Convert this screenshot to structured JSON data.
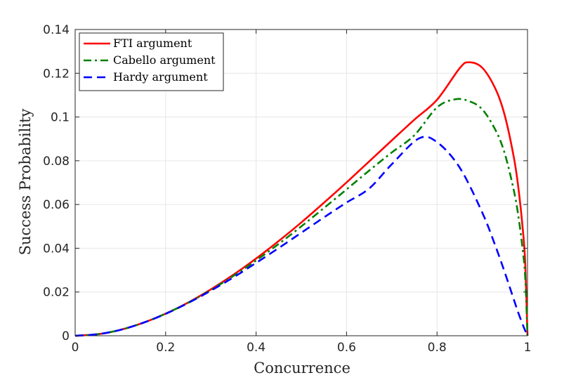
{
  "chart_data": {
    "type": "line",
    "title": "",
    "xlabel": "Concurrence",
    "ylabel": "Success Probability",
    "xlim": [
      0,
      1
    ],
    "ylim": [
      0,
      0.14
    ],
    "xticks": [
      0,
      0.2,
      0.4,
      0.6,
      0.8,
      1
    ],
    "xtick_labels": [
      "0",
      "0.2",
      "0.4",
      "0.6",
      "0.8",
      "1"
    ],
    "yticks": [
      0,
      0.02,
      0.04,
      0.06,
      0.08,
      0.1,
      0.12,
      0.14
    ],
    "ytick_labels": [
      "0",
      "0.02",
      "0.04",
      "0.06",
      "0.08",
      "0.1",
      "0.12",
      "0.14"
    ],
    "grid": true,
    "legend_position": "top-left",
    "series": [
      {
        "name": "FTI argument",
        "color": "#ff0000",
        "style": "solid",
        "x": [
          0,
          0.05,
          0.1,
          0.15,
          0.2,
          0.25,
          0.3,
          0.35,
          0.4,
          0.45,
          0.5,
          0.55,
          0.6,
          0.65,
          0.7,
          0.75,
          0.8,
          0.85,
          0.87,
          0.9,
          0.93,
          0.95,
          0.97,
          0.98,
          0.99,
          0.995,
          1.0
        ],
        "y": [
          0,
          0.0007,
          0.0027,
          0.0059,
          0.0101,
          0.0152,
          0.0212,
          0.0279,
          0.0353,
          0.0433,
          0.0518,
          0.0608,
          0.0701,
          0.0797,
          0.0893,
          0.0988,
          0.1079,
          0.1223,
          0.125,
          0.1225,
          0.1125,
          0.1005,
          0.0813,
          0.0673,
          0.0477,
          0.0329,
          0.0
        ]
      },
      {
        "name": "Cabello argument",
        "color": "#008000",
        "style": "dashdot",
        "x": [
          0,
          0.05,
          0.1,
          0.15,
          0.2,
          0.25,
          0.3,
          0.35,
          0.4,
          0.45,
          0.5,
          0.55,
          0.6,
          0.65,
          0.7,
          0.75,
          0.8,
          0.84,
          0.87,
          0.9,
          0.93,
          0.95,
          0.97,
          0.98,
          0.99,
          0.995,
          1.0
        ],
        "y": [
          0,
          0.0007,
          0.0027,
          0.0059,
          0.0101,
          0.0151,
          0.0209,
          0.0274,
          0.0344,
          0.042,
          0.05,
          0.0584,
          0.0669,
          0.0755,
          0.0838,
          0.0917,
          0.1044,
          0.1081,
          0.1073,
          0.1035,
          0.0937,
          0.0831,
          0.0662,
          0.0544,
          0.0382,
          0.0263,
          0.0
        ]
      },
      {
        "name": "Hardy argument",
        "color": "#0000ff",
        "style": "dashed",
        "x": [
          0,
          0.05,
          0.1,
          0.15,
          0.2,
          0.25,
          0.3,
          0.35,
          0.4,
          0.45,
          0.5,
          0.55,
          0.6,
          0.65,
          0.7,
          0.76,
          0.8,
          0.85,
          0.9,
          0.93,
          0.95,
          0.97,
          0.98,
          0.99,
          0.995,
          1.0
        ],
        "y": [
          0,
          0.0007,
          0.0027,
          0.0059,
          0.01,
          0.015,
          0.0206,
          0.0267,
          0.0333,
          0.0401,
          0.0471,
          0.0541,
          0.0609,
          0.0673,
          0.0784,
          0.0902,
          0.0885,
          0.0769,
          0.0563,
          0.0405,
          0.0288,
          0.0164,
          0.0103,
          0.0048,
          0.0023,
          0.0
        ]
      }
    ]
  }
}
